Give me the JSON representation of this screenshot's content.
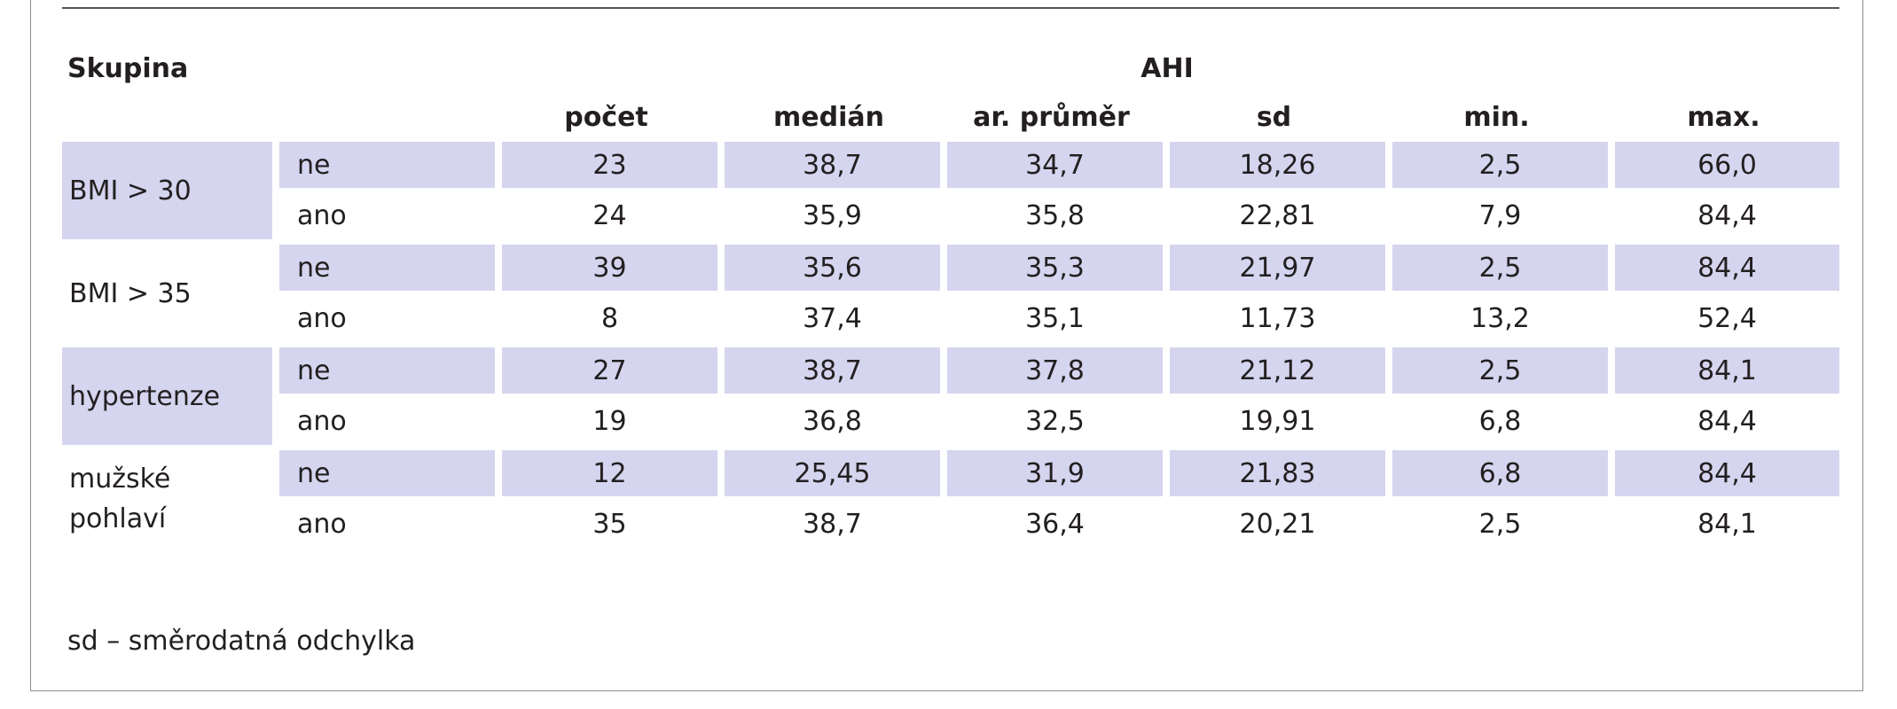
{
  "table": {
    "header": {
      "group_label": "Skupina",
      "measure_label": "AHI",
      "columns": [
        "počet",
        "medián",
        "ar. průměr",
        "sd",
        "min.",
        "max."
      ]
    },
    "groups": [
      {
        "label": "BMI > 30",
        "shaded_label": true,
        "rows": [
          {
            "sub": "ne",
            "values": [
              "23",
              "38,7",
              "34,7",
              "18,26",
              "2,5",
              "66,0"
            ]
          },
          {
            "sub": "ano",
            "values": [
              "24",
              "35,9",
              "35,8",
              "22,81",
              "7,9",
              "84,4"
            ]
          }
        ]
      },
      {
        "label": "BMI > 35",
        "shaded_label": false,
        "rows": [
          {
            "sub": "ne",
            "values": [
              "39",
              "35,6",
              "35,3",
              "21,97",
              "2,5",
              "84,4"
            ]
          },
          {
            "sub": "ano",
            "values": [
              "8",
              "37,4",
              "35,1",
              "11,73",
              "13,2",
              "52,4"
            ]
          }
        ]
      },
      {
        "label": "hypertenze",
        "shaded_label": true,
        "rows": [
          {
            "sub": "ne",
            "values": [
              "27",
              "38,7",
              "37,8",
              "21,12",
              "2,5",
              "84,1"
            ]
          },
          {
            "sub": "ano",
            "values": [
              "19",
              "36,8",
              "32,5",
              "19,91",
              "6,8",
              "84,4"
            ]
          }
        ]
      },
      {
        "label": "mužské pohlaví",
        "shaded_label": false,
        "rows": [
          {
            "sub": "ne",
            "values": [
              "12",
              "25,45",
              "31,9",
              "21,83",
              "6,8",
              "84,4"
            ]
          },
          {
            "sub": "ano",
            "values": [
              "35",
              "38,7",
              "36,4",
              "20,21",
              "2,5",
              "84,1"
            ]
          }
        ]
      }
    ]
  },
  "footnote": "sd – směrodatná odchylka",
  "colors": {
    "row_shade": "#d5d5ef",
    "text": "#231f20",
    "frame": "#8c8c8c"
  }
}
